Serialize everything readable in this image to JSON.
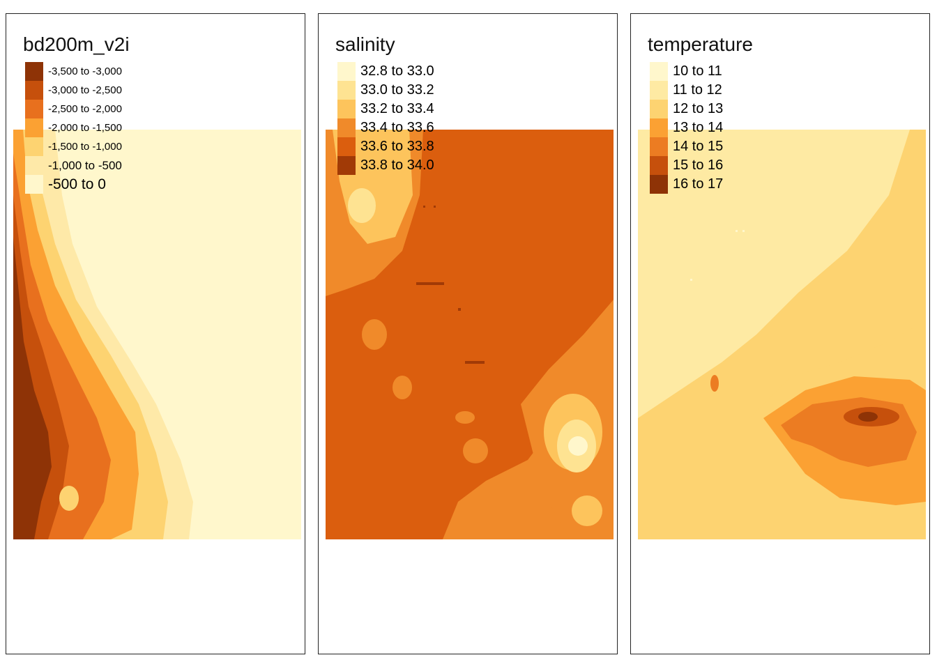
{
  "colors": {
    "c0": "#FFF7CC",
    "c1": "#FEE392",
    "c2": "#FDC45C",
    "c3": "#FBA133",
    "c4": "#E8701E",
    "c5": "#C6500C",
    "c6": "#8E3306"
  },
  "panels": [
    {
      "id": "bathymetry",
      "title": "bd200m_v2i",
      "legend": [
        {
          "label": "-3,500 to -3,000",
          "color": "#8E3306"
        },
        {
          "label": "-3,000 to -2,500",
          "color": "#C6500C"
        },
        {
          "label": "-2,500 to -2,000",
          "color": "#E8701E"
        },
        {
          "label": "-2,000 to -1,500",
          "color": "#FBA133"
        },
        {
          "label": "-1,500 to -1,000",
          "color": "#FDD371"
        },
        {
          "label": "-1,000 to -500",
          "color": "#FEE9A8"
        },
        {
          "label": "-500 to 0",
          "color": "#FFF7CC"
        }
      ]
    },
    {
      "id": "salinity",
      "title": "salinity",
      "legend": [
        {
          "label": "32.8 to 33.0",
          "color": "#FFF7CC"
        },
        {
          "label": "33.0 to 33.2",
          "color": "#FEE392"
        },
        {
          "label": "33.2 to 33.4",
          "color": "#FDC45C"
        },
        {
          "label": "33.4 to 33.6",
          "color": "#F08A2A"
        },
        {
          "label": "33.6 to 33.8",
          "color": "#DB5E0E"
        },
        {
          "label": "33.8 to 34.0",
          "color": "#A13A06"
        }
      ]
    },
    {
      "id": "temperature",
      "title": "temperature",
      "legend": [
        {
          "label": "10 to 11",
          "color": "#FFF7CC"
        },
        {
          "label": "11 to 12",
          "color": "#FEEAA3"
        },
        {
          "label": "12 to 13",
          "color": "#FDD371"
        },
        {
          "label": "13 to 14",
          "color": "#FBA133"
        },
        {
          "label": "14 to 15",
          "color": "#EC7C22"
        },
        {
          "label": "15 to 16",
          "color": "#C6500C"
        },
        {
          "label": "16 to 17",
          "color": "#8E3306"
        }
      ]
    }
  ]
}
